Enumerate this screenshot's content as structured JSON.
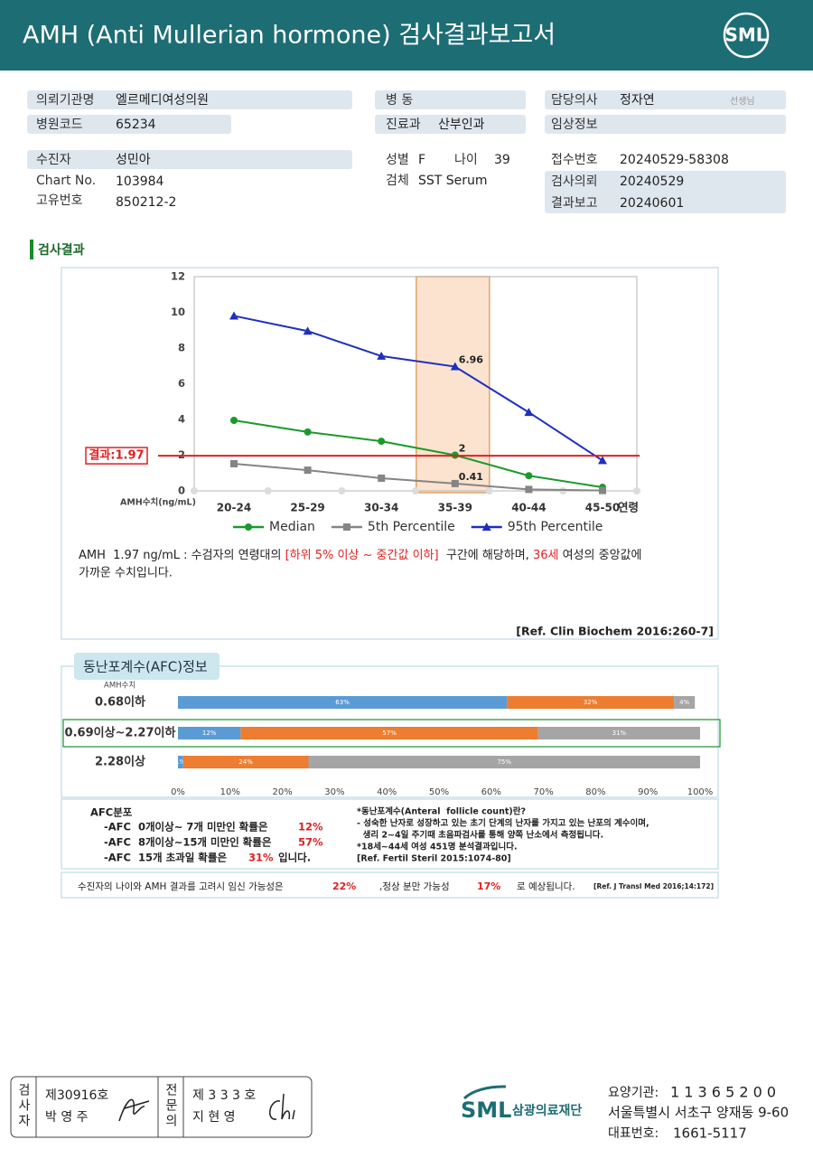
{
  "header": {
    "title": "AMH (Anti Mullerian hormone) 검사결과보고서",
    "logo": "SML"
  },
  "info": {
    "institution": {
      "label": "의뢰기관명",
      "value": "엘르메디여성의원"
    },
    "hospital_code": {
      "label": "병원코드",
      "value": "65234"
    },
    "patient": {
      "label": "수진자",
      "value": "성민아"
    },
    "chart_no": {
      "label": "Chart No.",
      "value": "103984"
    },
    "unique_no": {
      "label": "고유번호",
      "value": "850212-2"
    },
    "ward": {
      "label": "병 동"
    },
    "department": {
      "label": "진료과",
      "value": "산부인과"
    },
    "sex": {
      "label": "성별",
      "value": "F"
    },
    "age": {
      "label": "나이",
      "value": "39"
    },
    "specimen": {
      "label": "검체",
      "value": "SST Serum"
    },
    "doctor": {
      "label": "담당의사",
      "value": "정자연",
      "suffix": "선생님"
    },
    "clinical_info": {
      "label": "임상정보"
    },
    "receipt_no": {
      "label": "접수번호",
      "value": "20240529-58308"
    },
    "request_date": {
      "label": "검사의뢰",
      "value": "20240529"
    },
    "report_date": {
      "label": "결과보고",
      "value": "20240601"
    }
  },
  "section_title": "검사결과",
  "amh_chart": {
    "type": "line",
    "y_label": "AMH수치(ng/mL)",
    "x_label": "연령",
    "categories": [
      "20-24",
      "25-29",
      "30-34",
      "35-39",
      "40-44",
      "45-50"
    ],
    "series": [
      {
        "name": "Median",
        "color": "#1a9a2a",
        "marker": "circle",
        "values": [
          3.95,
          3.3,
          2.78,
          2,
          0.85,
          0.2
        ]
      },
      {
        "name": "5th Percentile",
        "color": "#858585",
        "marker": "square",
        "values": [
          1.52,
          1.16,
          0.71,
          0.41,
          0.08,
          0.02
        ]
      },
      {
        "name": "95th Percentile",
        "color": "#1e2fc0",
        "marker": "triangle",
        "values": [
          9.8,
          8.95,
          7.55,
          6.96,
          4.4,
          1.7
        ]
      }
    ],
    "highlight_category": "35-39",
    "data_labels_on_highlight": true,
    "result": {
      "label": "결과:1.97",
      "value": 1.97,
      "color": "#e02020"
    },
    "ylim": [
      0,
      12
    ],
    "yticks": [
      0,
      2,
      4,
      6,
      8,
      10,
      12
    ],
    "grid": false
  },
  "interpretation": {
    "emphasis_color": "#e02020",
    "line1": [
      {
        "text": "AMH  1.97 ng/mL : 수검자의 연령대의 "
      },
      {
        "text": "[하위 5% 이상 ~ 중간값 이하]",
        "emphasis": true
      },
      {
        "text": "  구간에 해당하며, "
      },
      {
        "text": "36세",
        "emphasis": true
      },
      {
        "text": " 여성의 중앙값에"
      }
    ],
    "line2": "가까운 수치입니다.",
    "reference": "[Ref. Clin Biochem 2016:260-7]"
  },
  "afc": {
    "title": "동난포계수(AFC)정보",
    "chart": {
      "type": "stacked_bar",
      "axis_label": "AMH수치",
      "categories": [
        "0.68이하",
        "0.69이상~2.27이하",
        "2.28이상"
      ],
      "highlight_category": "0.69이상~2.27이하",
      "series": [
        {
          "color": "#5b9bd5",
          "values": [
            63,
            12,
            1
          ],
          "value_labels": [
            "63%",
            "12%",
            "1%"
          ]
        },
        {
          "color": "#ed7d31",
          "values": [
            32,
            57,
            24
          ],
          "value_labels": [
            "32%",
            "57%",
            "24%"
          ]
        },
        {
          "color": "#a5a5a5",
          "values": [
            4,
            31,
            75
          ],
          "value_labels": [
            "4%",
            "31%",
            "75%"
          ]
        }
      ],
      "xlim": [
        0,
        100
      ],
      "xticks": [
        {
          "value": 0,
          "label": "0%"
        },
        {
          "value": 10,
          "label": "10%"
        },
        {
          "value": 20,
          "label": "20%"
        },
        {
          "value": 30,
          "label": "30%"
        },
        {
          "value": 40,
          "label": "40%"
        },
        {
          "value": 50,
          "label": "50%"
        },
        {
          "value": 60,
          "label": "60%"
        },
        {
          "value": 70,
          "label": "70%"
        },
        {
          "value": 80,
          "label": "80%"
        },
        {
          "value": 90,
          "label": "90%"
        },
        {
          "value": 100,
          "label": "100%"
        }
      ]
    },
    "distribution": {
      "title": "AFC분포",
      "lines": [
        {
          "text": "-AFC  0개이상~ 7개 미만인 확률은",
          "percent": "12%"
        },
        {
          "text": "-AFC  8개이상~15개 미만인 확률은",
          "percent": "57%"
        },
        {
          "text": "-AFC  15개 초과일 확률은",
          "percent": "31%",
          "suffix": "입니다."
        }
      ]
    },
    "notes": [
      "*동난포계수(Anteral  follicle count)란?",
      "- 성숙한 난자로 성장하고 있는 초기 단계의 난자를 가지고 있는 난포의 계수이며,",
      "  생리 2~4일 주기때 초음파검사를 통해 양쪽 난소에서 측정됩니다.",
      "*18세~44세 여성 451명 분석결과입니다.",
      "[Ref. Fertil Steril 2015:1074-80]"
    ]
  },
  "conclusion": {
    "text1": "수진자의 나이와 AMH 결과를 고려시 임신 가능성은",
    "pregnancy": "22%",
    "text2": ",정상 분만 가능성",
    "delivery": "17%",
    "text3": "로 예상됩니다.",
    "reference": "[Ref. J Transl Med 2016;14:172]"
  },
  "footer": {
    "signature": {
      "tester_title": "검사자",
      "tester_no": "제30916호",
      "tester_name": "박 영 주",
      "specialist_title": "전문의",
      "specialist_no": "제 3 3 3 호",
      "specialist_name": "지 현 영"
    },
    "org": {
      "logo": "SML",
      "name": "삼광의료재단",
      "code_label": "요양기관:",
      "code": "1 1 3 6 5 2 0 0",
      "address": "서울특별시 서초구 양재동 9-60",
      "phone_label": "대표번호:",
      "phone": "1661-5117"
    }
  }
}
